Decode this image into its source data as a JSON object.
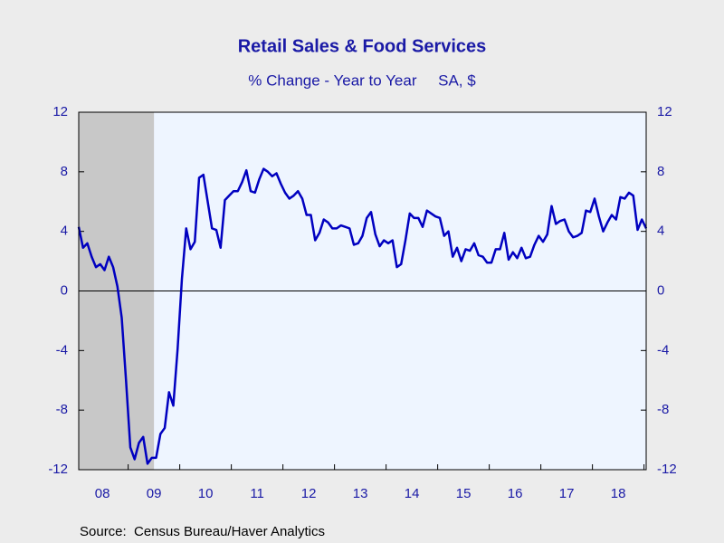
{
  "chart_data": {
    "type": "line",
    "title": "Retail Sales & Food Services",
    "subtitle": "% Change - Year to Year     SA, $",
    "source": "Source:  Census Bureau/Haver Analytics",
    "categories": [
      null,
      null,
      null,
      null,
      null,
      null,
      "08",
      null,
      null,
      null,
      null,
      null,
      null,
      null,
      null,
      null,
      null,
      null,
      "09",
      null,
      null,
      null,
      null,
      null,
      null,
      null,
      null,
      null,
      null,
      null,
      "10",
      null,
      null,
      null,
      null,
      null,
      null,
      null,
      null,
      null,
      null,
      null,
      "11",
      null,
      null,
      null,
      null,
      null,
      null,
      null,
      null,
      null,
      null,
      null,
      "12",
      null,
      null,
      null,
      null,
      null,
      null,
      null,
      null,
      null,
      null,
      null,
      "13",
      null,
      null,
      null,
      null,
      null,
      null,
      null,
      null,
      null,
      null,
      null,
      "14",
      null,
      null,
      null,
      null,
      null,
      null,
      null,
      null,
      null,
      null,
      null,
      "15",
      null,
      null,
      null,
      null,
      null,
      null,
      null,
      null,
      null,
      null,
      null,
      "16",
      null,
      null,
      null,
      null,
      null,
      null,
      null,
      null,
      null,
      null,
      null,
      "17",
      null,
      null,
      null,
      null,
      null,
      null,
      null,
      null,
      null,
      null,
      null,
      "18",
      null,
      null,
      null,
      null,
      null,
      null
    ],
    "values": [
      4.3,
      2.9,
      3.2,
      2.3,
      1.6,
      1.8,
      1.4,
      2.3,
      1.6,
      0.3,
      -1.8,
      -6.0,
      -10.5,
      -11.3,
      -10.2,
      -9.8,
      -11.6,
      -11.2,
      -11.2,
      -9.6,
      -9.2,
      -6.8,
      -7.7,
      -3.9,
      0.8,
      4.2,
      2.8,
      3.3,
      7.6,
      7.8,
      6.0,
      4.2,
      4.1,
      2.9,
      6.1,
      6.4,
      6.7,
      6.7,
      7.3,
      8.1,
      6.7,
      6.6,
      7.5,
      8.2,
      8.0,
      7.7,
      7.9,
      7.2,
      6.6,
      6.2,
      6.4,
      6.7,
      6.2,
      5.1,
      5.1,
      3.4,
      3.9,
      4.8,
      4.6,
      4.2,
      4.2,
      4.4,
      4.3,
      4.2,
      3.1,
      3.2,
      3.7,
      4.9,
      5.3,
      3.8,
      3.0,
      3.4,
      3.2,
      3.4,
      1.6,
      1.8,
      3.4,
      5.2,
      4.9,
      4.9,
      4.3,
      5.4,
      5.2,
      5.0,
      4.9,
      3.7,
      4.0,
      2.3,
      2.9,
      2.0,
      2.8,
      2.7,
      3.2,
      2.4,
      2.3,
      1.9,
      1.9,
      2.8,
      2.8,
      3.9,
      2.1,
      2.6,
      2.2,
      2.9,
      2.2,
      2.3,
      3.1,
      3.7,
      3.3,
      3.8,
      5.7,
      4.5,
      4.7,
      4.8,
      4.0,
      3.6,
      3.7,
      3.9,
      5.4,
      5.3,
      6.2,
      5.0,
      4.0,
      4.6,
      5.1,
      4.8,
      6.3,
      6.2,
      6.6,
      6.4,
      4.1,
      4.8,
      4.2
    ],
    "color": "#0000c0",
    "shaded_range": [
      0,
      17
    ],
    "ylim": [
      -12,
      12
    ],
    "yticks": [
      -12,
      -8,
      -4,
      0,
      4,
      8,
      12
    ]
  }
}
